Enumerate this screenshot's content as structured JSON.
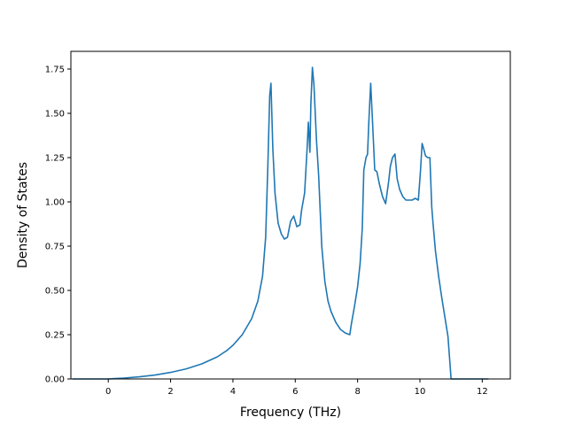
{
  "chart_data": {
    "type": "line",
    "title": "",
    "xlabel": "Frequency (THz)",
    "ylabel": "Density of States",
    "xlim": [
      -1.2,
      12.9
    ],
    "ylim": [
      0.0,
      1.85
    ],
    "xticks": [
      0,
      2,
      4,
      6,
      8,
      10,
      12
    ],
    "yticks": [
      0.0,
      0.25,
      0.5,
      0.75,
      1.0,
      1.25,
      1.5,
      1.75
    ],
    "xtick_labels": [
      "0",
      "2",
      "4",
      "6",
      "8",
      "10",
      "12"
    ],
    "ytick_labels": [
      "0.00",
      "0.25",
      "0.50",
      "0.75",
      "1.00",
      "1.25",
      "1.50",
      "1.75"
    ],
    "grid": false,
    "legend": "none",
    "line_color": "#1f77b4",
    "series": [
      {
        "x": [
          -1.15,
          -0.5,
          0.0,
          0.5,
          1.0,
          1.5,
          2.0,
          2.5,
          3.0,
          3.5,
          3.8,
          4.0,
          4.3,
          4.6,
          4.8,
          4.95,
          5.05,
          5.12,
          5.18,
          5.22,
          5.28,
          5.35,
          5.45,
          5.55,
          5.65,
          5.75,
          5.85,
          5.95,
          6.05,
          6.15,
          6.2,
          6.3,
          6.38,
          6.42,
          6.47,
          6.5,
          6.55,
          6.6,
          6.68,
          6.75,
          6.85,
          6.95,
          7.05,
          7.15,
          7.3,
          7.45,
          7.6,
          7.75,
          7.8,
          7.9,
          8.0,
          8.08,
          8.15,
          8.2,
          8.27,
          8.32,
          8.36,
          8.42,
          8.48,
          8.55,
          8.62,
          8.7,
          8.8,
          8.9,
          9.0,
          9.05,
          9.12,
          9.2,
          9.27,
          9.35,
          9.45,
          9.55,
          9.65,
          9.75,
          9.85,
          9.95,
          10.02,
          10.07,
          10.12,
          10.18,
          10.25,
          10.32,
          10.38,
          10.42,
          10.5,
          10.6,
          10.7,
          10.8,
          10.9,
          11.0,
          11.1,
          11.15,
          11.3,
          11.6,
          12.0,
          12.2
        ],
        "y": [
          0.0,
          0.0,
          0.0,
          0.005,
          0.012,
          0.022,
          0.037,
          0.057,
          0.085,
          0.125,
          0.16,
          0.19,
          0.25,
          0.34,
          0.44,
          0.58,
          0.8,
          1.2,
          1.6,
          1.67,
          1.3,
          1.05,
          0.88,
          0.82,
          0.79,
          0.8,
          0.89,
          0.92,
          0.86,
          0.87,
          0.95,
          1.05,
          1.3,
          1.45,
          1.28,
          1.55,
          1.76,
          1.66,
          1.35,
          1.15,
          0.75,
          0.55,
          0.44,
          0.38,
          0.32,
          0.28,
          0.26,
          0.25,
          0.31,
          0.41,
          0.52,
          0.65,
          0.85,
          1.18,
          1.25,
          1.27,
          1.45,
          1.67,
          1.45,
          1.18,
          1.17,
          1.1,
          1.03,
          0.99,
          1.12,
          1.2,
          1.25,
          1.27,
          1.13,
          1.07,
          1.03,
          1.01,
          1.01,
          1.01,
          1.02,
          1.01,
          1.18,
          1.33,
          1.3,
          1.26,
          1.25,
          1.25,
          0.97,
          0.88,
          0.72,
          0.58,
          0.46,
          0.35,
          0.24,
          0.0,
          0.0,
          0.0,
          0.0,
          0.0,
          0.0,
          0.0
        ]
      }
    ]
  }
}
